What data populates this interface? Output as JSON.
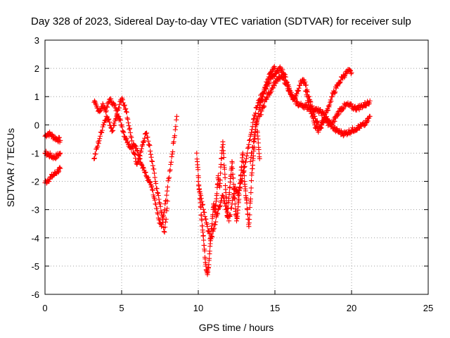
{
  "colors": {
    "series": "#ff0000",
    "text": "#000000",
    "grid": "#a0a0a0"
  },
  "chart_data": {
    "type": "scatter",
    "title": "Day 328 of 2023, Sidereal Day-to-day VTEC variation (SDTVAR) for receiver sulp",
    "xlabel": "GPS time / hours",
    "ylabel": "SDTVAR / TECUs",
    "xlim": [
      0,
      25
    ],
    "ylim": [
      -6,
      3
    ],
    "x_ticks": [
      0,
      5,
      10,
      15,
      20,
      25
    ],
    "y_ticks": [
      -6,
      -5,
      -4,
      -3,
      -2,
      -1,
      0,
      1,
      2,
      3
    ],
    "x_tick_labels": [
      "0",
      "5",
      "10",
      "15",
      "20",
      "25"
    ],
    "y_tick_labels": [
      "-6",
      "-5",
      "-4",
      "-3",
      "-2",
      "-1",
      "0",
      "1",
      "2",
      "3"
    ],
    "grid": true,
    "marker": "plus",
    "series": [
      {
        "track": "a",
        "x": [
          0.0,
          0.2,
          0.4,
          0.6,
          0.8,
          1.0
        ],
        "y": [
          -0.4,
          -0.3,
          -0.35,
          -0.45,
          -0.5,
          -0.55
        ]
      },
      {
        "track": "b",
        "x": [
          0.0,
          0.2,
          0.4,
          0.6,
          0.8,
          1.0
        ],
        "y": [
          -1.0,
          -1.05,
          -1.1,
          -1.15,
          -1.1,
          -1.0
        ]
      },
      {
        "track": "c",
        "x": [
          0.0,
          0.2,
          0.4,
          0.6,
          0.8,
          1.0
        ],
        "y": [
          -2.05,
          -1.95,
          -1.85,
          -1.75,
          -1.65,
          -1.55
        ]
      },
      {
        "track": "d",
        "x": [
          3.2,
          3.4,
          3.6,
          3.8,
          4.0,
          4.2,
          4.4,
          4.6,
          4.8,
          5.0,
          5.2,
          5.4,
          5.6,
          5.8,
          6.0,
          6.2,
          6.4,
          6.6,
          6.8,
          7.0,
          7.2,
          7.4,
          7.6,
          7.8,
          8.0,
          8.2,
          8.4,
          8.6
        ],
        "y": [
          0.8,
          0.6,
          0.5,
          0.7,
          0.5,
          0.9,
          0.8,
          0.6,
          0.3,
          0.0,
          -0.4,
          -0.6,
          -0.8,
          -0.7,
          -0.9,
          -1.2,
          -1.5,
          -1.8,
          -2.0,
          -2.3,
          -2.8,
          -3.3,
          -3.6,
          -3.0,
          -2.2,
          -1.4,
          -0.6,
          0.3
        ]
      },
      {
        "track": "e",
        "x": [
          3.2,
          3.4,
          3.6,
          3.8,
          4.0,
          4.2,
          4.4,
          4.6,
          4.8,
          5.0,
          5.2,
          5.4,
          5.6,
          5.8,
          6.0,
          6.2,
          6.4,
          6.6,
          6.8,
          7.0,
          7.2,
          7.4,
          7.6,
          7.8,
          8.0
        ],
        "y": [
          -1.2,
          -0.8,
          -0.4,
          0.0,
          0.3,
          0.1,
          -0.2,
          0.2,
          0.6,
          0.9,
          0.7,
          0.2,
          -0.4,
          -1.0,
          -1.4,
          -1.1,
          -0.6,
          -0.3,
          -0.7,
          -1.3,
          -2.0,
          -2.5,
          -3.1,
          -3.8,
          -2.7
        ]
      },
      {
        "track": "f",
        "x": [
          9.9,
          10.0,
          10.1,
          10.2,
          10.3,
          10.4,
          10.5,
          10.6,
          10.7,
          10.8,
          10.9,
          11.0,
          11.1,
          11.2,
          11.3,
          11.4,
          11.5,
          11.6,
          11.7,
          11.8,
          11.9,
          12.0,
          12.1,
          12.2,
          12.3,
          12.4,
          12.5,
          12.6,
          12.7,
          12.8,
          12.9,
          13.0,
          13.1,
          13.2,
          13.3,
          13.4,
          13.5,
          13.6,
          13.7,
          13.8,
          13.9,
          14.0
        ],
        "y": [
          -1.0,
          -1.8,
          -2.6,
          -3.2,
          -3.8,
          -4.4,
          -5.0,
          -5.3,
          -4.8,
          -4.0,
          -3.5,
          -2.8,
          -3.1,
          -2.5,
          -1.8,
          -2.2,
          -1.2,
          -0.6,
          -1.5,
          -2.4,
          -3.2,
          -2.6,
          -1.9,
          -1.3,
          -2.1,
          -2.8,
          -3.4,
          -2.9,
          -2.2,
          -1.6,
          -1.0,
          -1.8,
          -2.5,
          -3.0,
          -3.6,
          -2.7,
          -1.7,
          -1.1,
          -0.4,
          0.2,
          -0.5,
          -1.2
        ]
      },
      {
        "track": "g",
        "x": [
          10.0,
          10.2,
          10.4,
          10.6,
          10.8,
          11.0,
          11.2,
          11.4,
          11.6,
          11.8,
          12.0,
          12.2,
          12.4,
          12.6,
          12.8,
          13.0,
          13.2,
          13.4,
          13.6,
          13.8,
          14.0,
          14.2,
          14.4,
          14.6,
          14.8,
          15.0
        ],
        "y": [
          -2.0,
          -2.6,
          -3.1,
          -3.6,
          -4.1,
          -3.7,
          -3.2,
          -2.9,
          -2.5,
          -3.0,
          -3.4,
          -2.8,
          -2.2,
          -2.5,
          -2.0,
          -1.5,
          -1.0,
          -0.4,
          0.2,
          0.6,
          0.9,
          1.1,
          1.4,
          1.7,
          1.9,
          2.0
        ]
      },
      {
        "track": "h",
        "x": [
          13.4,
          13.6,
          13.8,
          14.0,
          14.2,
          14.4,
          14.6,
          14.8,
          15.0,
          15.2,
          15.4,
          15.6,
          15.8,
          16.0,
          16.2,
          16.4,
          16.6,
          16.8,
          17.0,
          17.2,
          17.4,
          17.6,
          17.8,
          18.0,
          18.2,
          18.4,
          18.6,
          18.8,
          19.0,
          19.2,
          19.4,
          19.6,
          19.8,
          20.0
        ],
        "y": [
          -1.3,
          -0.6,
          0.1,
          0.6,
          1.0,
          1.3,
          1.5,
          1.7,
          1.8,
          1.9,
          2.0,
          1.8,
          1.5,
          1.2,
          0.9,
          1.1,
          1.4,
          1.6,
          1.4,
          1.0,
          0.6,
          0.3,
          0.0,
          -0.1,
          0.2,
          0.5,
          0.8,
          1.1,
          1.3,
          1.5,
          1.7,
          1.8,
          1.9,
          1.85
        ]
      },
      {
        "track": "i",
        "x": [
          14.0,
          14.2,
          14.4,
          14.6,
          14.8,
          15.0,
          15.2,
          15.4,
          15.6,
          15.8,
          16.0,
          16.2,
          16.4,
          16.6,
          16.8,
          17.0,
          17.2,
          17.4,
          17.6,
          17.8,
          18.0,
          18.2,
          18.4,
          18.6,
          18.8,
          19.0,
          19.2,
          19.4,
          19.6,
          19.8,
          20.0,
          20.2,
          20.4,
          20.6,
          20.8,
          21.0,
          21.2
        ],
        "y": [
          0.3,
          0.6,
          0.9,
          1.1,
          1.3,
          1.5,
          1.6,
          1.7,
          1.6,
          1.4,
          1.1,
          0.9,
          0.8,
          0.7,
          0.7,
          0.65,
          0.6,
          0.6,
          0.55,
          0.5,
          0.45,
          0.35,
          0.2,
          0.05,
          -0.1,
          -0.2,
          -0.25,
          -0.3,
          -0.3,
          -0.25,
          -0.2,
          -0.15,
          -0.1,
          -0.05,
          0.0,
          0.1,
          0.3
        ]
      },
      {
        "track": "j",
        "x": [
          17.0,
          17.2,
          17.4,
          17.6,
          17.8,
          18.0,
          18.2,
          18.4,
          18.6,
          18.8,
          19.0,
          19.2,
          19.4,
          19.6,
          19.8,
          20.0,
          20.2,
          20.4,
          20.6,
          20.8,
          21.0,
          21.2
        ],
        "y": [
          1.2,
          0.8,
          0.4,
          0.0,
          -0.2,
          0.0,
          0.2,
          0.1,
          0.0,
          0.1,
          0.3,
          0.5,
          0.6,
          0.7,
          0.7,
          0.65,
          0.6,
          0.6,
          0.65,
          0.7,
          0.75,
          0.85
        ]
      }
    ]
  }
}
